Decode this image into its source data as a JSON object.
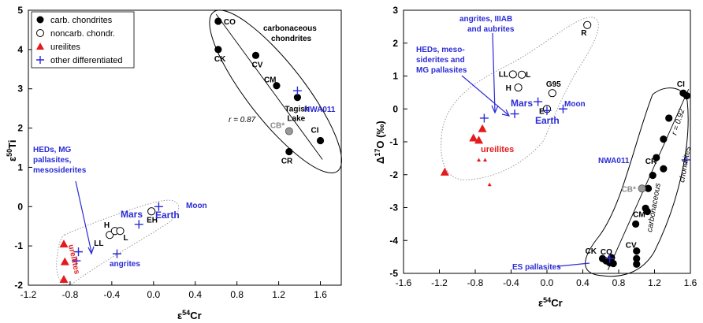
{
  "chart_data": [
    {
      "type": "scatter",
      "title": "",
      "xlabel_pre": "ε",
      "xlabel_sup": "54",
      "xlabel_post": "Cr",
      "ylabel_pre": "ε",
      "ylabel_sup": "50",
      "ylabel_post": "Ti",
      "xlim": [
        -1.2,
        1.8
      ],
      "ylim": [
        -2,
        5
      ],
      "xticks": [
        "-1.2",
        "-0.8",
        "-0.4",
        "0.0",
        "0.4",
        "0.8",
        "1.2",
        "1.6"
      ],
      "xtick_values": [
        -1.2,
        -0.8,
        -0.4,
        0.0,
        0.4,
        0.8,
        1.2,
        1.6
      ],
      "yticks": [
        "-2",
        "-1",
        "0",
        "1",
        "2",
        "3",
        "4",
        "5"
      ],
      "ytick_values": [
        -2,
        -1,
        0,
        1,
        2,
        3,
        4,
        5
      ],
      "grid": false,
      "legend_position": "top-left",
      "legend": [
        {
          "label": "carb. chondrites",
          "marker": "filled-circle"
        },
        {
          "label": "noncarb. chondr.",
          "marker": "open-circle"
        },
        {
          "label": "ureilites",
          "marker": "triangle"
        },
        {
          "label": "other differentiated",
          "marker": "plus"
        }
      ],
      "series": [
        {
          "marker": "filled-circle",
          "points": [
            {
              "x": 0.62,
              "y": 4.72,
              "label": "CO"
            },
            {
              "x": 0.62,
              "y": 4.0,
              "label": "CK"
            },
            {
              "x": 0.98,
              "y": 3.85,
              "label": "CV"
            },
            {
              "x": 1.18,
              "y": 3.08,
              "label": "CM"
            },
            {
              "x": 1.38,
              "y": 2.78,
              "label": "Tagish Lake"
            },
            {
              "x": 1.3,
              "y": 1.4,
              "label": "CR"
            },
            {
              "x": 1.6,
              "y": 1.68,
              "label": "CI"
            }
          ]
        },
        {
          "marker": "grey-circle",
          "points": [
            {
              "x": 1.3,
              "y": 1.92,
              "label": "CB*"
            }
          ]
        },
        {
          "marker": "open-circle",
          "points": [
            {
              "x": -0.02,
              "y": -0.12,
              "label": "EH"
            },
            {
              "x": -0.42,
              "y": -0.72,
              "label": "LL"
            },
            {
              "x": -0.37,
              "y": -0.62,
              "label": "H"
            },
            {
              "x": -0.32,
              "y": -0.62,
              "label": "L"
            }
          ]
        },
        {
          "marker": "triangle",
          "points": [
            {
              "x": -0.86,
              "y": -0.95
            },
            {
              "x": -0.85,
              "y": -1.4
            },
            {
              "x": -0.86,
              "y": -1.85
            }
          ]
        },
        {
          "marker": "plus",
          "points": [
            {
              "x": -0.72,
              "y": -1.15
            },
            {
              "x": -0.74,
              "y": -1.38
            },
            {
              "x": -0.35,
              "y": -1.2
            },
            {
              "x": -0.14,
              "y": -0.45
            },
            {
              "x": 0.05,
              "y": 0.0
            },
            {
              "x": 1.38,
              "y": 2.95
            }
          ]
        }
      ],
      "annotations": {
        "carbonaceous_line1": "carbonaceous",
        "carbonaceous_line2": "chondrites",
        "r_value": "r = 0.87",
        "nwa": "NWA011",
        "earth": "Earth",
        "mars": "Mars",
        "moon": "Moon",
        "angrites": "angrites",
        "ureilites": "ureilites",
        "heds_line1": "HEDs, MG",
        "heds_line2": "pallasites,",
        "heds_line3": "mesosiderites"
      }
    },
    {
      "type": "scatter",
      "title": "",
      "xlabel_pre": "ε",
      "xlabel_sup": "54",
      "xlabel_post": "Cr",
      "ylabel_pre": "Δ",
      "ylabel_sup": "17",
      "ylabel_post": "O (‰)",
      "xlim": [
        -1.6,
        1.6
      ],
      "ylim": [
        -5,
        3
      ],
      "xticks": [
        "-1.6",
        "-1.2",
        "-0.8",
        "-0.4",
        "0.0",
        "0.4",
        "0.8",
        "1.2",
        "1.6"
      ],
      "xtick_values": [
        -1.6,
        -1.2,
        -0.8,
        -0.4,
        0.0,
        0.4,
        0.8,
        1.2,
        1.6
      ],
      "yticks": [
        "-5",
        "-4",
        "-3",
        "-2",
        "-1",
        "0",
        "1",
        "2",
        "3"
      ],
      "ytick_values": [
        -5,
        -4,
        -3,
        -2,
        -1,
        0,
        1,
        2,
        3
      ],
      "grid": false,
      "series": [
        {
          "marker": "filled-circle",
          "points": [
            {
              "x": 1.52,
              "y": 0.48,
              "label": "CI"
            },
            {
              "x": 1.56,
              "y": 0.4
            },
            {
              "x": 1.36,
              "y": -0.28
            },
            {
              "x": 1.3,
              "y": -0.92
            },
            {
              "x": 1.22,
              "y": -1.48,
              "label": "CR"
            },
            {
              "x": 1.3,
              "y": -1.82
            },
            {
              "x": 1.18,
              "y": -2.02
            },
            {
              "x": 1.13,
              "y": -2.42
            },
            {
              "x": 1.1,
              "y": -3.02,
              "label": "CM"
            },
            {
              "x": 1.12,
              "y": -3.12
            },
            {
              "x": 0.99,
              "y": -3.5
            },
            {
              "x": 1.0,
              "y": -4.32,
              "label": "CV"
            },
            {
              "x": 1.0,
              "y": -4.55
            },
            {
              "x": 1.0,
              "y": -4.72
            },
            {
              "x": 0.72,
              "y": -4.52,
              "label": "CO"
            },
            {
              "x": 0.66,
              "y": -4.62
            },
            {
              "x": 0.62,
              "y": -4.55,
              "label": "CK"
            },
            {
              "x": 0.7,
              "y": -4.68
            },
            {
              "x": 0.74,
              "y": -4.7
            }
          ]
        },
        {
          "marker": "grey-circle",
          "points": [
            {
              "x": 1.06,
              "y": -2.42,
              "label": "CB*"
            }
          ]
        },
        {
          "marker": "open-circle",
          "points": [
            {
              "x": 0.45,
              "y": 2.55,
              "label": "R"
            },
            {
              "x": 0.06,
              "y": 0.48,
              "label": "G95"
            },
            {
              "x": -0.38,
              "y": 1.05,
              "label": "LL"
            },
            {
              "x": -0.28,
              "y": 1.04,
              "label": "L"
            },
            {
              "x": -0.32,
              "y": 0.65,
              "label": "H"
            },
            {
              "x": 0.0,
              "y": 0.0,
              "label": "E"
            }
          ]
        },
        {
          "marker": "triangle",
          "points": [
            {
              "x": -1.14,
              "y": -1.92
            },
            {
              "x": -0.82,
              "y": -0.88
            },
            {
              "x": -0.76,
              "y": -0.95
            },
            {
              "x": -0.72,
              "y": -0.6
            }
          ]
        },
        {
          "marker": "small-triangle",
          "points": [
            {
              "x": -0.76,
              "y": -1.55
            },
            {
              "x": -0.69,
              "y": -1.55
            },
            {
              "x": -0.64,
              "y": -2.3
            }
          ]
        },
        {
          "marker": "plus",
          "points": [
            {
              "x": -0.7,
              "y": -0.28
            },
            {
              "x": -0.36,
              "y": -0.15
            },
            {
              "x": -0.1,
              "y": 0.22
            },
            {
              "x": 0.0,
              "y": -0.05
            },
            {
              "x": 0.18,
              "y": 0.0
            },
            {
              "x": 1.55,
              "y": -1.55
            },
            {
              "x": 0.7,
              "y": -4.55
            }
          ]
        }
      ],
      "annotations": {
        "angrites_line1": "angrites, IIIAB",
        "angrites_line2": "and aubrites",
        "heds_line1": "HEDs, meso-",
        "heds_line2": "siderites and",
        "heds_line3": "MG pallasites",
        "mars": "Mars",
        "earth": "Earth",
        "moon": "Moon",
        "ureilites": "ureilites",
        "nwa": "NWA011",
        "r_value": "r = 0.92",
        "carbonaceous": "carbonaceous",
        "chondrites": "chondrites",
        "es_pallasites": "ES pallasites"
      }
    }
  ],
  "colors": {
    "ink": "#000000",
    "blue": "#2b2bd6",
    "red": "#e41a1c",
    "grey": "#8a8a8a",
    "cb_grey": "#999999",
    "outline": "#999999"
  }
}
